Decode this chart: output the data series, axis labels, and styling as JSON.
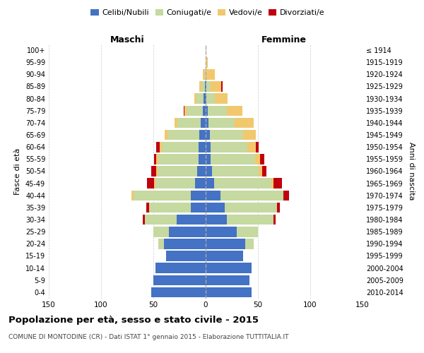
{
  "age_groups": [
    "0-4",
    "5-9",
    "10-14",
    "15-19",
    "20-24",
    "25-29",
    "30-34",
    "35-39",
    "40-44",
    "45-49",
    "50-54",
    "55-59",
    "60-64",
    "65-69",
    "70-74",
    "75-79",
    "80-84",
    "85-89",
    "90-94",
    "95-99",
    "100+"
  ],
  "birth_years": [
    "2010-2014",
    "2005-2009",
    "2000-2004",
    "1995-1999",
    "1990-1994",
    "1985-1989",
    "1980-1984",
    "1975-1979",
    "1970-1974",
    "1965-1969",
    "1960-1964",
    "1955-1959",
    "1950-1954",
    "1945-1949",
    "1940-1944",
    "1935-1939",
    "1930-1934",
    "1925-1929",
    "1920-1924",
    "1915-1919",
    "≤ 1914"
  ],
  "colors": {
    "single": "#4472C4",
    "married": "#C5D9A0",
    "widowed": "#F2C86E",
    "divorced": "#C0000C"
  },
  "male": {
    "single": [
      52,
      50,
      48,
      38,
      40,
      35,
      28,
      14,
      14,
      10,
      8,
      7,
      7,
      6,
      5,
      3,
      2,
      1,
      0,
      0,
      0
    ],
    "married": [
      0,
      0,
      0,
      0,
      5,
      15,
      30,
      40,
      55,
      38,
      38,
      38,
      35,
      30,
      22,
      15,
      7,
      3,
      1,
      0,
      0
    ],
    "widowed": [
      0,
      0,
      0,
      0,
      0,
      0,
      0,
      0,
      2,
      1,
      1,
      2,
      2,
      3,
      3,
      2,
      2,
      2,
      2,
      0,
      0
    ],
    "divorced": [
      0,
      0,
      0,
      0,
      0,
      0,
      2,
      3,
      0,
      7,
      5,
      2,
      3,
      0,
      0,
      1,
      0,
      0,
      0,
      0,
      0
    ]
  },
  "female": {
    "single": [
      44,
      42,
      44,
      36,
      38,
      30,
      20,
      18,
      14,
      8,
      6,
      5,
      5,
      4,
      3,
      2,
      1,
      1,
      0,
      0,
      0
    ],
    "married": [
      0,
      0,
      0,
      0,
      8,
      20,
      45,
      50,
      60,
      55,
      45,
      42,
      35,
      32,
      25,
      18,
      8,
      4,
      1,
      0,
      0
    ],
    "widowed": [
      0,
      0,
      0,
      0,
      0,
      0,
      0,
      0,
      0,
      2,
      3,
      5,
      8,
      12,
      18,
      15,
      12,
      10,
      8,
      2,
      1
    ],
    "divorced": [
      0,
      0,
      0,
      0,
      0,
      0,
      2,
      3,
      6,
      8,
      4,
      4,
      3,
      0,
      0,
      0,
      0,
      1,
      0,
      0,
      0
    ]
  },
  "xlim": 150,
  "title": "Popolazione per età, sesso e stato civile - 2015",
  "subtitle": "COMUNE DI MONTODINE (CR) - Dati ISTAT 1° gennaio 2015 - Elaborazione TUTTITALIA.IT",
  "ylabel_left": "Fasce di età",
  "ylabel_right": "Anni di nascita",
  "xlabel_left": "Maschi",
  "xlabel_right": "Femmine",
  "bg_color": "#ffffff",
  "grid_color": "#cccccc"
}
